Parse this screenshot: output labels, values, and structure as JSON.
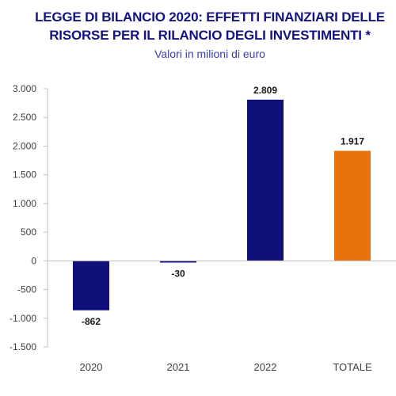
{
  "chart_data": {
    "type": "bar",
    "title_lines": [
      "LEGGE DI BILANCIO 2020: EFFETTI FINANZIARI  DELLE",
      "RISORSE PER IL RILANCIO DEGLI INVESTIMENTI *"
    ],
    "subtitle": "Valori in milioni di euro",
    "categories": [
      "2020",
      "2021",
      "2022",
      "TOTALE"
    ],
    "values": [
      -862,
      -30,
      2809,
      1917
    ],
    "value_labels": [
      "-862",
      "-30",
      "2.809",
      "1.917"
    ],
    "bar_colors": [
      "#10107a",
      "#10107a",
      "#10107a",
      "#e8720c"
    ],
    "ylim": [
      -1500,
      3000
    ],
    "yticks": [
      3000,
      2500,
      2000,
      1500,
      1000,
      500,
      0,
      -500,
      -1000,
      -1500
    ],
    "ytick_labels": [
      "3.000",
      "2.500",
      "2.000",
      "1.500",
      "1.000",
      "500",
      "0",
      "-500",
      "-1.000",
      "-1.500"
    ],
    "grid": false,
    "legend": "none"
  }
}
